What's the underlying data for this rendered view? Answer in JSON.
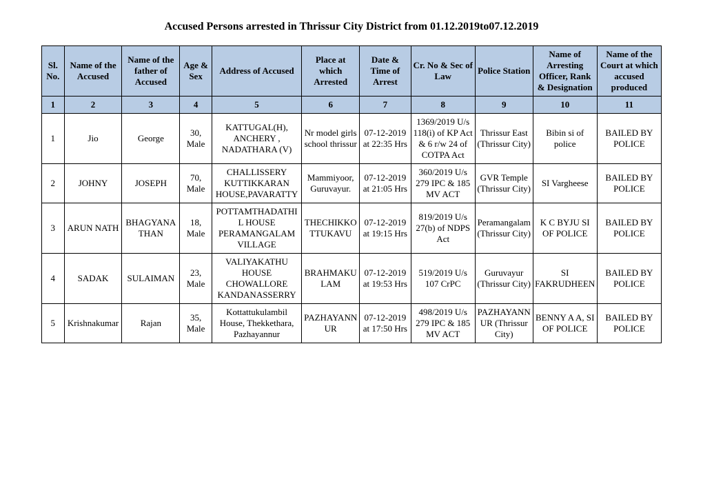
{
  "title": "Accused Persons arrested in   Thrissur City   District from  01.12.2019to07.12.2019",
  "headers": {
    "c1": "Sl. No.",
    "c2": "Name of the Accused",
    "c3": "Name of the father of Accused",
    "c4": "Age & Sex",
    "c5": "Address of Accused",
    "c6": "Place at which Arrested",
    "c7": "Date & Time of Arrest",
    "c8": "Cr. No & Sec of Law",
    "c9": "Police Station",
    "c10": "Name of Arresting Officer, Rank & Designation",
    "c11": "Name of the Court at which accused produced"
  },
  "numrow": [
    "1",
    "2",
    "3",
    "4",
    "5",
    "6",
    "7",
    "8",
    "9",
    "10",
    "11"
  ],
  "rows": [
    {
      "sl": "1",
      "name": "Jio",
      "father": "George",
      "age": "30, Male",
      "address": "KATTUGAL(H), ANCHERY , NADATHARA (V)",
      "place": "Nr model girls school thrissur",
      "datetime": "07-12-2019 at 22:35 Hrs",
      "crno": "1369/2019 U/s 118(i) of KP Act & 6 r/w 24 of COTPA Act",
      "station": "Thrissur East (Thrissur City)",
      "officer": "Bibin si of police",
      "court": "BAILED BY POLICE"
    },
    {
      "sl": "2",
      "name": "JOHNY",
      "father": "JOSEPH",
      "age": "70, Male",
      "address": "CHALLISSERY KUTTIKKARAN HOUSE,PAVARATTY",
      "place": "Mammiyoor, Guruvayur.",
      "datetime": "07-12-2019 at 21:05 Hrs",
      "crno": "360/2019 U/s 279 IPC & 185 MV ACT",
      "station": "GVR Temple (Thrissur City)",
      "officer": "SI Vargheese",
      "court": "BAILED BY POLICE"
    },
    {
      "sl": "3",
      "name": "ARUN NATH",
      "father": "BHAGYANATHAN",
      "age": "18, Male",
      "address": "POTTAMTHADATHIL HOUSE PERAMANGALAM VILLAGE",
      "place": "THECHIKKOTTUKAVU",
      "datetime": "07-12-2019 at 19:15 Hrs",
      "crno": "819/2019 U/s 27(b) of NDPS Act",
      "station": "Peramangalam (Thrissur City)",
      "officer": "K C BYJU SI OF POLICE",
      "court": "BAILED BY POLICE"
    },
    {
      "sl": "4",
      "name": "SADAK",
      "father": "SULAIMAN",
      "age": "23, Male",
      "address": "VALIYAKATHU HOUSE CHOWALLORE KANDANASSERRY",
      "place": "BRAHMAKULAM",
      "datetime": "07-12-2019 at 19:53 Hrs",
      "crno": "519/2019 U/s 107 CrPC",
      "station": "Guruvayur (Thrissur City)",
      "officer": "SI FAKRUDHEEN",
      "court": "BAILED BY POLICE"
    },
    {
      "sl": "5",
      "name": "Krishnakumar",
      "father": "Rajan",
      "age": "35, Male",
      "address": "Kottattukulambil House, Thekkethara, Pazhayannur",
      "place": "PAZHAYANNUR",
      "datetime": "07-12-2019 at 17:50 Hrs",
      "crno": "498/2019 U/s 279 IPC & 185 MV ACT",
      "station": "PAZHAYANNUR (Thrissur City)",
      "officer": "BENNY A A, SI OF POLICE",
      "court": "BAILED BY POLICE"
    }
  ]
}
